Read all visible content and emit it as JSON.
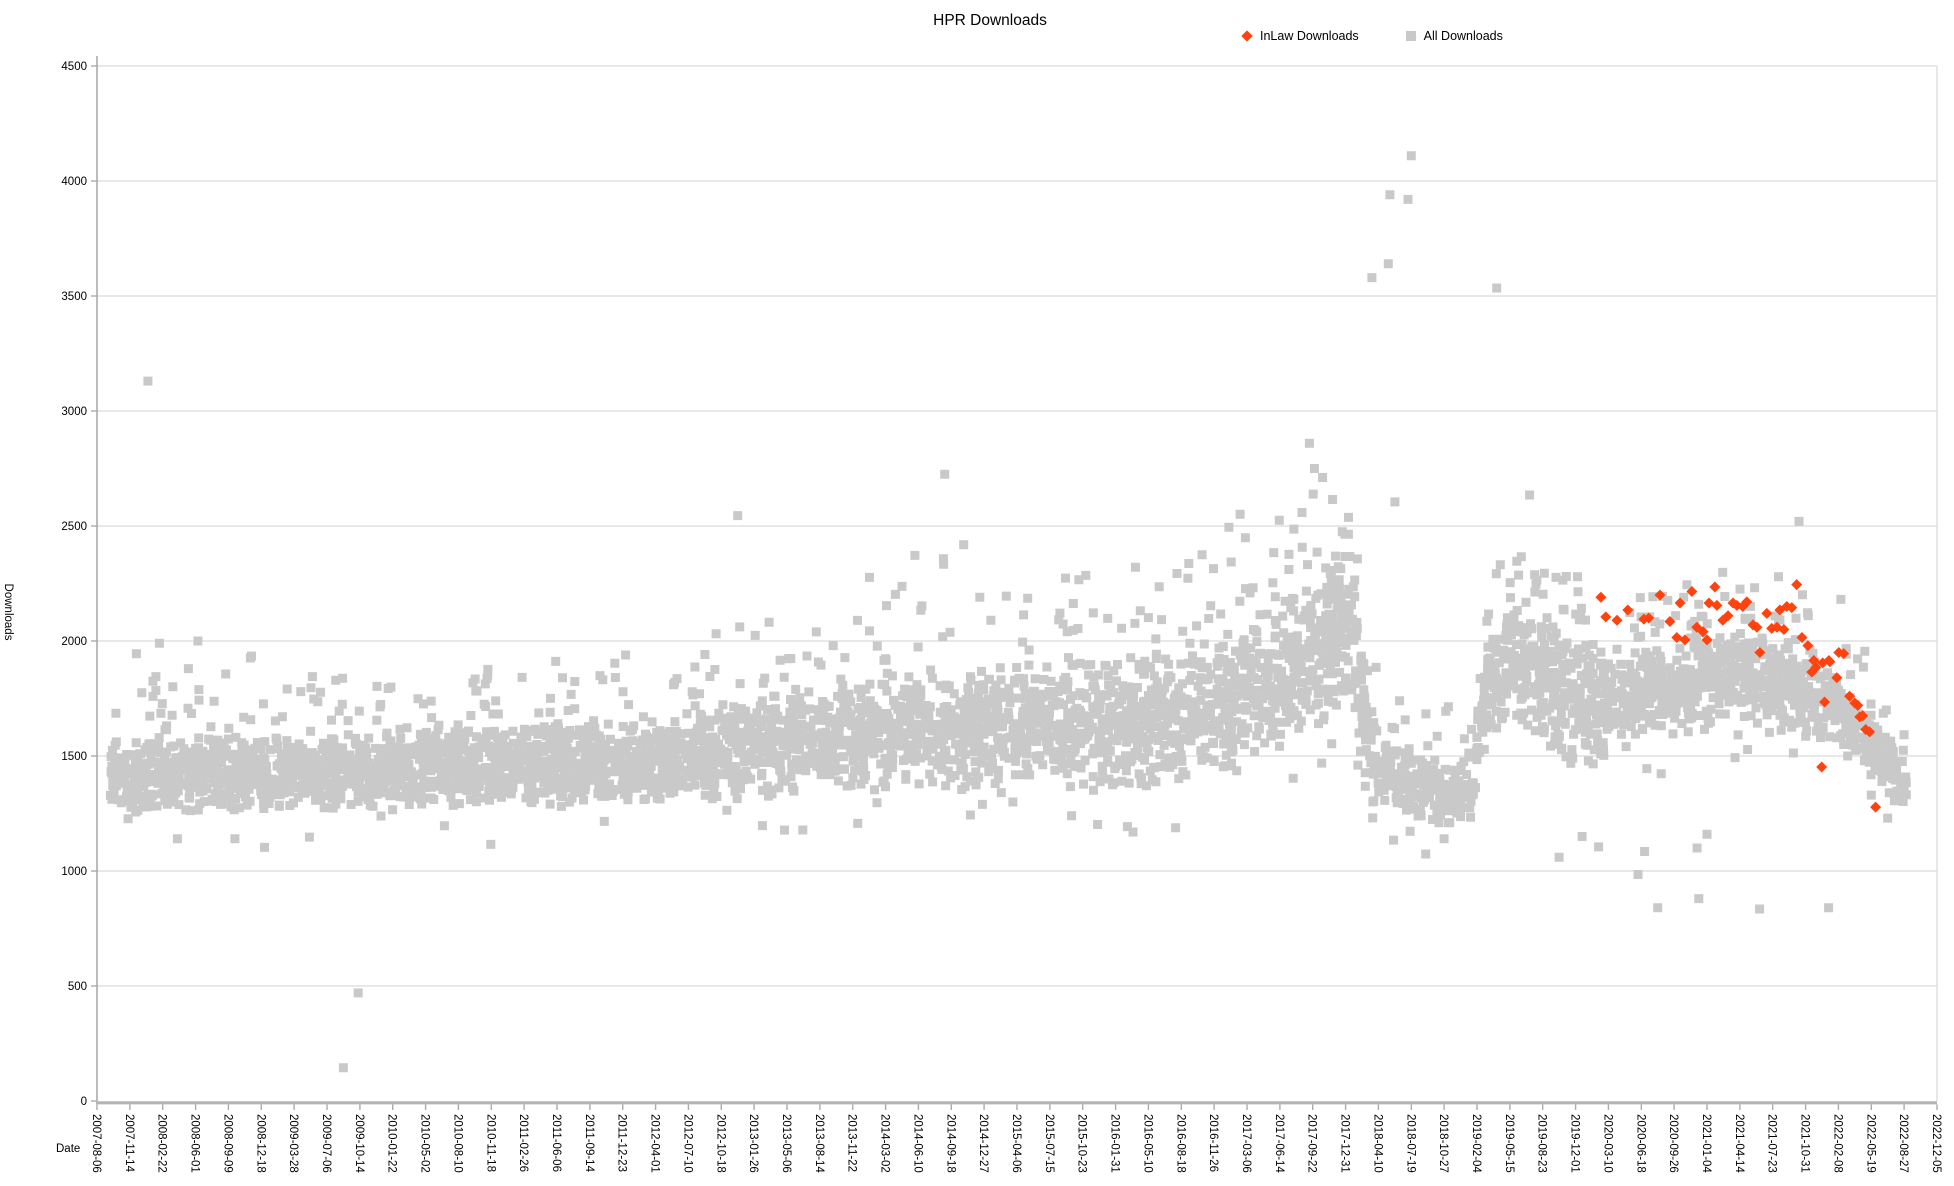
{
  "page": {
    "title": "HPR Downloads"
  },
  "axes": {
    "x_title": "Date",
    "y_title": "Downloads"
  },
  "legend": {
    "items": [
      {
        "label": "InLaw Downloads",
        "marker": "diamond",
        "color": "#ff420e"
      },
      {
        "label": "All Downloads",
        "marker": "square",
        "color": "#c9c9c9"
      }
    ]
  },
  "chart_data": {
    "type": "scatter",
    "title": "HPR Downloads",
    "xlabel": "Date",
    "ylabel": "Downloads",
    "ylim": [
      0,
      4500
    ],
    "y_tick_step": 500,
    "y_ticks": [
      0,
      500,
      1000,
      1500,
      2000,
      2500,
      3000,
      3500,
      4000,
      4500
    ],
    "grid": true,
    "legend_position": "top",
    "x_tick_interval_days": 100,
    "x_ticks": [
      "2007-08-06",
      "2007-11-14",
      "2008-02-22",
      "2008-06-01",
      "2008-09-09",
      "2008-12-18",
      "2009-03-28",
      "2009-07-06",
      "2009-10-14",
      "2010-01-22",
      "2010-05-02",
      "2010-08-10",
      "2010-11-18",
      "2011-02-26",
      "2011-06-06",
      "2011-09-14",
      "2011-12-23",
      "2012-04-01",
      "2012-07-10",
      "2012-10-18",
      "2013-01-26",
      "2013-05-06",
      "2013-08-14",
      "2013-11-22",
      "2014-03-02",
      "2014-06-10",
      "2014-09-18",
      "2014-12-27",
      "2015-04-06",
      "2015-07-15",
      "2015-10-23",
      "2016-01-31",
      "2016-05-10",
      "2016-08-18",
      "2016-11-26",
      "2017-03-06",
      "2017-06-14",
      "2017-09-22",
      "2017-12-31",
      "2018-04-10",
      "2018-07-19",
      "2018-10-27",
      "2019-02-04",
      "2019-05-15",
      "2019-08-23",
      "2019-12-01",
      "2020-03-10",
      "2020-06-18",
      "2020-09-26",
      "2021-01-04",
      "2021-04-14",
      "2021-07-23",
      "2021-10-31",
      "2022-02-08",
      "2022-05-19",
      "2022-08-27",
      "2022-12-05"
    ],
    "series": [
      {
        "name": "InLaw Downloads",
        "marker": "diamond",
        "color": "#ff420e",
        "x_unit": "tick_index (1 unit = 100 days from 2007-08-06)",
        "points": [
          [
            45.77,
            2190
          ],
          [
            45.92,
            2105
          ],
          [
            46.26,
            2090
          ],
          [
            46.59,
            2135
          ],
          [
            47.08,
            2095
          ],
          [
            47.23,
            2100
          ],
          [
            47.57,
            2200
          ],
          [
            47.87,
            2085
          ],
          [
            48.08,
            2015
          ],
          [
            48.18,
            2165
          ],
          [
            48.33,
            2005
          ],
          [
            48.54,
            2215
          ],
          [
            48.69,
            2060
          ],
          [
            48.88,
            2040
          ],
          [
            49.0,
            2005
          ],
          [
            49.06,
            2165
          ],
          [
            49.24,
            2235
          ],
          [
            49.3,
            2155
          ],
          [
            49.48,
            2090
          ],
          [
            49.64,
            2110
          ],
          [
            49.79,
            2165
          ],
          [
            49.91,
            2155
          ],
          [
            50.09,
            2150
          ],
          [
            50.21,
            2170
          ],
          [
            50.4,
            2070
          ],
          [
            50.52,
            2060
          ],
          [
            50.61,
            1950
          ],
          [
            50.82,
            2120
          ],
          [
            50.97,
            2055
          ],
          [
            51.13,
            2060
          ],
          [
            51.22,
            2135
          ],
          [
            51.34,
            2050
          ],
          [
            51.43,
            2150
          ],
          [
            51.58,
            2145
          ],
          [
            51.73,
            2245
          ],
          [
            51.89,
            2015
          ],
          [
            52.07,
            1980
          ],
          [
            52.19,
            1865
          ],
          [
            52.25,
            1915
          ],
          [
            52.31,
            1885
          ],
          [
            52.52,
            1905
          ],
          [
            52.58,
            1735
          ],
          [
            52.71,
            1915
          ],
          [
            52.74,
            1910
          ],
          [
            52.95,
            1840
          ],
          [
            53.01,
            1950
          ],
          [
            53.16,
            1945
          ],
          [
            53.34,
            1760
          ],
          [
            53.5,
            1730
          ],
          [
            53.59,
            1720
          ],
          [
            53.65,
            1670
          ],
          [
            53.74,
            1675
          ],
          [
            53.83,
            1615
          ],
          [
            53.95,
            1605
          ],
          [
            52.49,
            1452
          ],
          [
            54.13,
            1278
          ]
        ]
      },
      {
        "name": "All Downloads",
        "marker": "square",
        "color": "#c9c9c9",
        "x_unit": "tick_index (1 unit = 100 days from 2007-08-06)",
        "representation": "dense daily scatter (~5200 points) summarized as piecewise-linear band [index, core_low, core_high, sparse_tail_high, density] sampled with seeded rng, plus explicit outliers",
        "points_per_index": 95,
        "seed": 1337,
        "band": [
          [
            0.35,
            1250,
            1650,
            1850,
            0.45
          ],
          [
            1,
            1230,
            1600,
            1950,
            1
          ],
          [
            4,
            1230,
            1620,
            1950,
            1
          ],
          [
            8,
            1240,
            1650,
            1900,
            1
          ],
          [
            12,
            1250,
            1680,
            1900,
            1
          ],
          [
            16,
            1250,
            1700,
            1950,
            1
          ],
          [
            18,
            1270,
            1750,
            2100,
            1
          ],
          [
            20,
            1280,
            1800,
            2250,
            1
          ],
          [
            22,
            1290,
            1850,
            2460,
            1
          ],
          [
            24,
            1300,
            1900,
            2450,
            1
          ],
          [
            26,
            1300,
            1950,
            2600,
            1
          ],
          [
            28,
            1300,
            1950,
            2400,
            1
          ],
          [
            30,
            1280,
            2000,
            2420,
            1
          ],
          [
            32,
            1300,
            2000,
            2300,
            1
          ],
          [
            34,
            1350,
            2080,
            2500,
            1
          ],
          [
            36,
            1450,
            2200,
            2680,
            1.1
          ],
          [
            37,
            1550,
            2350,
            2750,
            1.25
          ],
          [
            37.6,
            1600,
            2480,
            2700,
            1.3
          ],
          [
            38.3,
            1550,
            2450,
            2550,
            1.2
          ],
          [
            38.6,
            1300,
            1900,
            2100,
            1
          ],
          [
            39,
            1220,
            1650,
            1950,
            0.9
          ],
          [
            40.3,
            1180,
            1550,
            1800,
            0.75
          ],
          [
            41.8,
            1180,
            1500,
            1700,
            0.75
          ],
          [
            42.3,
            1500,
            2050,
            2350,
            1
          ],
          [
            43,
            1600,
            2250,
            2430,
            1.05
          ],
          [
            44,
            1500,
            2200,
            2350,
            1.05
          ],
          [
            45,
            1350,
            2100,
            2300,
            1
          ],
          [
            46.5,
            1500,
            2000,
            2200,
            1
          ],
          [
            48,
            1550,
            2050,
            2250,
            1
          ],
          [
            50,
            1600,
            2100,
            2350,
            1
          ],
          [
            51.5,
            1550,
            2050,
            2300,
            1
          ],
          [
            53,
            1500,
            1950,
            2200,
            1
          ],
          [
            54,
            1350,
            1800,
            1950,
            0.9
          ],
          [
            54.8,
            1250,
            1550,
            1700,
            0.8
          ],
          [
            55.1,
            1250,
            1500,
            1600,
            0.4
          ]
        ],
        "outliers": [
          [
            1.55,
            3130
          ],
          [
            1.7,
            1825
          ],
          [
            1.9,
            1990
          ],
          [
            3.07,
            2000
          ],
          [
            7.5,
            145
          ],
          [
            7.95,
            470
          ],
          [
            19.5,
            2545
          ],
          [
            25.8,
            2725
          ],
          [
            36.9,
            2860
          ],
          [
            37.05,
            2750
          ],
          [
            38.8,
            3580
          ],
          [
            39.3,
            3640
          ],
          [
            39.35,
            3940
          ],
          [
            39.5,
            2605
          ],
          [
            39.9,
            3920
          ],
          [
            40.0,
            4110
          ],
          [
            41.0,
            1140
          ],
          [
            42.6,
            3535
          ],
          [
            43.6,
            2635
          ],
          [
            44.5,
            1060
          ],
          [
            45.2,
            1150
          ],
          [
            45.7,
            1105
          ],
          [
            46.9,
            985
          ],
          [
            47.1,
            1085
          ],
          [
            47.5,
            840
          ],
          [
            48.7,
            1100
          ],
          [
            48.75,
            880
          ],
          [
            49.0,
            1160
          ],
          [
            50.6,
            835
          ],
          [
            51.8,
            2520
          ],
          [
            52.7,
            840
          ],
          [
            54.0,
            1330
          ],
          [
            54.5,
            1230
          ]
        ]
      }
    ]
  },
  "colors": {
    "background": "#ffffff",
    "gridline": "#d9d9d9",
    "axis": "#b0b0b0",
    "text": "#000000",
    "series_inlaw": "#ff420e",
    "series_all": "#c9c9c9"
  }
}
